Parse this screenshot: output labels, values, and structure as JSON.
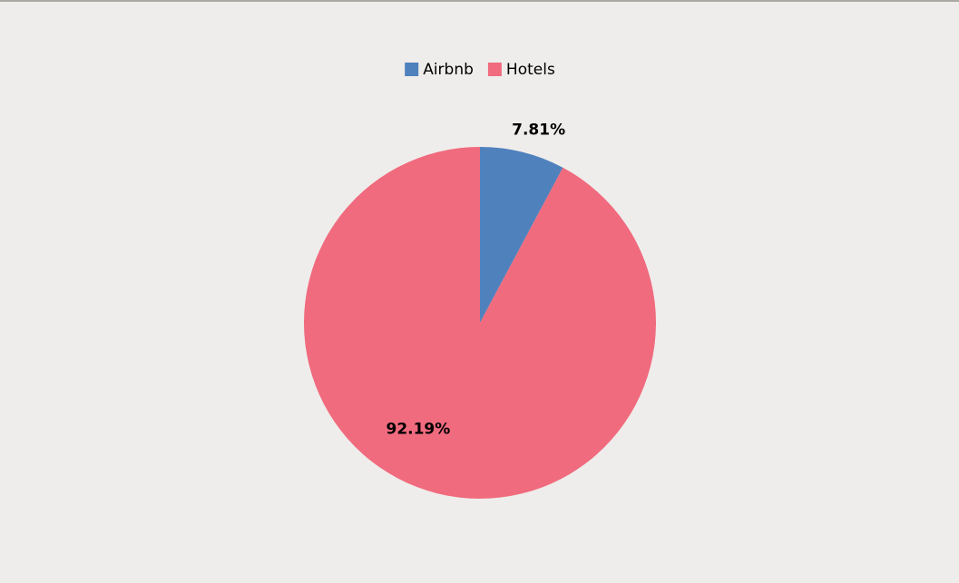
{
  "chart_data": {
    "type": "pie",
    "categories": [
      "Airbnb",
      "Hotels"
    ],
    "values": [
      7.81,
      92.19
    ],
    "value_labels": [
      "7.81%",
      "92.19%"
    ],
    "colors": [
      "#4f81bd",
      "#f06b7e"
    ],
    "legend": "top"
  }
}
